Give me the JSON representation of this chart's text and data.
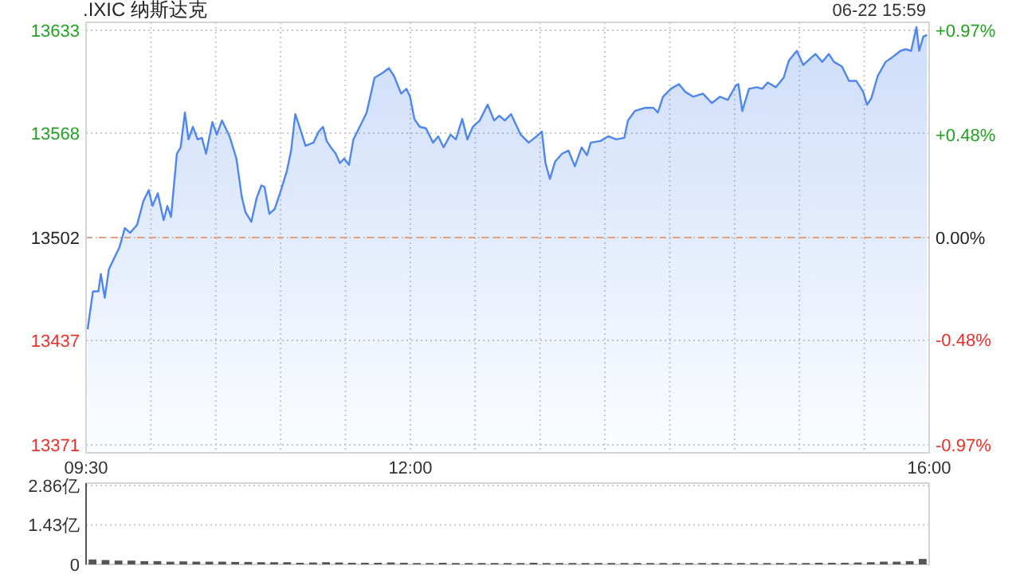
{
  "chart_data": [
    {
      "type": "area",
      "title": ".IXIC 纳斯达克",
      "annotations": [
        "06-22 15:59"
      ],
      "x": [
        9.512,
        9.553,
        9.595,
        9.614,
        9.644,
        9.676,
        9.717,
        9.758,
        9.799,
        9.84,
        9.893,
        9.942,
        9.983,
        10.012,
        10.053,
        10.098,
        10.127,
        10.155,
        10.2,
        10.229,
        10.262,
        10.29,
        10.323,
        10.36,
        10.393,
        10.425,
        10.474,
        10.508,
        10.548,
        10.606,
        10.659,
        10.7,
        10.729,
        10.774,
        10.815,
        10.852,
        10.876,
        10.913,
        10.954,
        10.995,
        11.048,
        11.081,
        11.113,
        11.138,
        11.192,
        11.253,
        11.294,
        11.327,
        11.355,
        11.396,
        11.425,
        11.457,
        11.49,
        11.527,
        11.561,
        11.622,
        11.663,
        11.724,
        11.785,
        11.835,
        11.875,
        11.929,
        11.97,
        11.998,
        12.031,
        12.072,
        12.121,
        12.175,
        12.215,
        12.256,
        12.31,
        12.351,
        12.4,
        12.44,
        12.482,
        12.535,
        12.596,
        12.646,
        12.686,
        12.728,
        12.777,
        12.851,
        12.912,
        12.974,
        13.014,
        13.042,
        13.076,
        13.116,
        13.17,
        13.219,
        13.268,
        13.321,
        13.362,
        13.391,
        13.465,
        13.526,
        13.588,
        13.649,
        13.678,
        13.731,
        13.813,
        13.874,
        13.908,
        13.948,
        14.009,
        14.071,
        14.12,
        14.181,
        14.255,
        14.325,
        14.387,
        14.448,
        14.509,
        14.529,
        14.559,
        14.611,
        14.673,
        14.713,
        14.755,
        14.817,
        14.878,
        14.919,
        14.98,
        15.029,
        15.082,
        15.124,
        15.176,
        15.226,
        15.266,
        15.328,
        15.382,
        15.438,
        15.492,
        15.521,
        15.554,
        15.603,
        15.664,
        15.717,
        15.779,
        15.819,
        15.861,
        15.902,
        15.923,
        15.955,
        15.984
      ],
      "series": [
        {
          "color": "#4f86ec",
          "values": [
            13444,
            13468,
            13468,
            13479,
            13464,
            13482,
            13489,
            13496,
            13508,
            13505,
            13510,
            13525,
            13532,
            13522,
            13530,
            13513,
            13522,
            13515,
            13555,
            13559,
            13581,
            13564,
            13572,
            13564,
            13565,
            13555,
            13575,
            13567,
            13576,
            13566,
            13552,
            13528,
            13518,
            13512,
            13527,
            13535,
            13534,
            13517,
            13520,
            13530,
            13544,
            13557,
            13580,
            13574,
            13560,
            13562,
            13569,
            13572,
            13563,
            13558,
            13555,
            13549,
            13552,
            13548,
            13564,
            13574,
            13581,
            13603,
            13606,
            13609,
            13604,
            13593,
            13596,
            13591,
            13577,
            13572,
            13571,
            13562,
            13566,
            13559,
            13567,
            13564,
            13577,
            13564,
            13572,
            13576,
            13586,
            13576,
            13579,
            13576,
            13580,
            13567,
            13562,
            13566,
            13569,
            13549,
            13539,
            13550,
            13555,
            13557,
            13547,
            13559,
            13554,
            13562,
            13563,
            13566,
            13564,
            13565,
            13576,
            13582,
            13584,
            13584,
            13581,
            13591,
            13596,
            13599,
            13594,
            13591,
            13593,
            13587,
            13591,
            13589,
            13598,
            13599,
            13582,
            13596,
            13597,
            13596,
            13600,
            13597,
            13603,
            13614,
            13620,
            13611,
            13615,
            13618,
            13613,
            13618,
            13613,
            13610,
            13601,
            13601,
            13594,
            13586,
            13590,
            13604,
            13613,
            13616,
            13620,
            13621,
            13620,
            13635,
            13620,
            13629,
            13630
          ]
        }
      ],
      "xlim": [
        9.5,
        16
      ],
      "xticks": [
        {
          "value": 9.5,
          "label": "09:30"
        },
        {
          "value": 10,
          "label": null
        },
        {
          "value": 10.5,
          "label": null
        },
        {
          "value": 11,
          "label": null
        },
        {
          "value": 11.5,
          "label": null
        },
        {
          "value": 12,
          "label": "12:00"
        },
        {
          "value": 12.5,
          "label": null
        },
        {
          "value": 13,
          "label": null
        },
        {
          "value": 13.5,
          "label": null
        },
        {
          "value": 14,
          "label": null
        },
        {
          "value": 14.5,
          "label": null
        },
        {
          "value": 15,
          "label": null
        },
        {
          "value": 15.5,
          "label": null
        },
        {
          "value": 16,
          "label": "16:00"
        }
      ],
      "ylim": [
        13366,
        13638
      ],
      "yticks": [
        13371,
        13437,
        13502,
        13568,
        13633
      ],
      "y2lim": [
        -1.007,
        1.007
      ],
      "y2ticks": [
        {
          "value": -0.97,
          "label": "-0.97%"
        },
        {
          "value": -0.48,
          "label": "-0.48%"
        },
        {
          "value": 0,
          "label": "0.00%"
        },
        {
          "value": 0.48,
          "label": "+0.48%"
        },
        {
          "value": 0.97,
          "label": "+0.97%"
        }
      ],
      "ref_lines": [
        {
          "axis": "y",
          "value": 13502,
          "color": "#e8a07a",
          "line_style": "dashed"
        }
      ],
      "grid": true
    },
    {
      "type": "bar",
      "tick_labels": "y",
      "color": "#555555",
      "x": [
        9.55,
        9.65,
        9.75,
        9.85,
        9.95,
        10.05,
        10.15,
        10.25,
        10.35,
        10.45,
        10.55,
        10.65,
        10.75,
        10.85,
        10.95,
        11.05,
        11.15,
        11.25,
        11.35,
        11.45,
        11.55,
        11.65,
        11.75,
        11.85,
        11.95,
        12.05,
        12.15,
        12.25,
        12.35,
        12.45,
        12.55,
        12.65,
        12.75,
        12.85,
        12.95,
        13.05,
        13.15,
        13.25,
        13.35,
        13.45,
        13.55,
        13.65,
        13.75,
        13.85,
        13.95,
        14.05,
        14.15,
        14.25,
        14.35,
        14.45,
        14.55,
        14.65,
        14.75,
        14.85,
        14.95,
        15.05,
        15.15,
        15.25,
        15.35,
        15.45,
        15.55,
        15.65,
        15.75,
        15.85,
        15.95
      ],
      "values": [
        0.18,
        0.16,
        0.14,
        0.14,
        0.12,
        0.12,
        0.1,
        0.11,
        0.1,
        0.1,
        0.1,
        0.09,
        0.09,
        0.08,
        0.08,
        0.08,
        0.06,
        0.07,
        0.08,
        0.07,
        0.06,
        0.06,
        0.06,
        0.07,
        0.06,
        0.05,
        0.05,
        0.06,
        0.05,
        0.05,
        0.05,
        0.05,
        0.05,
        0.05,
        0.06,
        0.05,
        0.05,
        0.05,
        0.05,
        0.05,
        0.05,
        0.05,
        0.05,
        0.05,
        0.05,
        0.05,
        0.05,
        0.05,
        0.05,
        0.05,
        0.05,
        0.05,
        0.05,
        0.05,
        0.05,
        0.05,
        0.06,
        0.06,
        0.06,
        0.07,
        0.08,
        0.1,
        0.1,
        0.12,
        0.2
      ],
      "xlim": [
        9.5,
        16
      ],
      "ylim": [
        0,
        2.95
      ],
      "yticks": [
        0,
        {
          "value": 1.43,
          "label": "1.43亿"
        },
        {
          "value": 2.86,
          "label": "2.86亿"
        }
      ],
      "grid": "y"
    }
  ]
}
